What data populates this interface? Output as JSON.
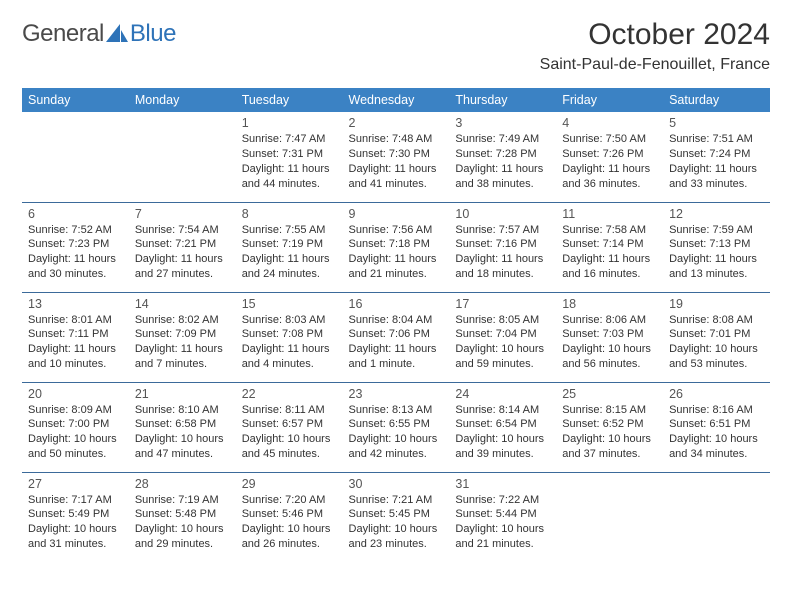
{
  "brand": {
    "left": "General",
    "right": "Blue"
  },
  "colors": {
    "header_bg": "#3b82c4",
    "header_text": "#ffffff",
    "row_border": "#3b6a9a",
    "logo_accent": "#2e73b8",
    "body_text": "#333333"
  },
  "title": "October 2024",
  "location": "Saint-Paul-de-Fenouillet, France",
  "weekdays": [
    "Sunday",
    "Monday",
    "Tuesday",
    "Wednesday",
    "Thursday",
    "Friday",
    "Saturday"
  ],
  "calendar": {
    "type": "table",
    "columns": 7,
    "rows": 5,
    "first_weekday_index": 2,
    "title_fontsize": 30,
    "location_fontsize": 16,
    "header_fontsize": 12.5,
    "daynum_fontsize": 12.5,
    "body_fontsize": 11
  },
  "days": [
    {
      "n": "1",
      "sunrise": "Sunrise: 7:47 AM",
      "sunset": "Sunset: 7:31 PM",
      "daylight": "Daylight: 11 hours and 44 minutes."
    },
    {
      "n": "2",
      "sunrise": "Sunrise: 7:48 AM",
      "sunset": "Sunset: 7:30 PM",
      "daylight": "Daylight: 11 hours and 41 minutes."
    },
    {
      "n": "3",
      "sunrise": "Sunrise: 7:49 AM",
      "sunset": "Sunset: 7:28 PM",
      "daylight": "Daylight: 11 hours and 38 minutes."
    },
    {
      "n": "4",
      "sunrise": "Sunrise: 7:50 AM",
      "sunset": "Sunset: 7:26 PM",
      "daylight": "Daylight: 11 hours and 36 minutes."
    },
    {
      "n": "5",
      "sunrise": "Sunrise: 7:51 AM",
      "sunset": "Sunset: 7:24 PM",
      "daylight": "Daylight: 11 hours and 33 minutes."
    },
    {
      "n": "6",
      "sunrise": "Sunrise: 7:52 AM",
      "sunset": "Sunset: 7:23 PM",
      "daylight": "Daylight: 11 hours and 30 minutes."
    },
    {
      "n": "7",
      "sunrise": "Sunrise: 7:54 AM",
      "sunset": "Sunset: 7:21 PM",
      "daylight": "Daylight: 11 hours and 27 minutes."
    },
    {
      "n": "8",
      "sunrise": "Sunrise: 7:55 AM",
      "sunset": "Sunset: 7:19 PM",
      "daylight": "Daylight: 11 hours and 24 minutes."
    },
    {
      "n": "9",
      "sunrise": "Sunrise: 7:56 AM",
      "sunset": "Sunset: 7:18 PM",
      "daylight": "Daylight: 11 hours and 21 minutes."
    },
    {
      "n": "10",
      "sunrise": "Sunrise: 7:57 AM",
      "sunset": "Sunset: 7:16 PM",
      "daylight": "Daylight: 11 hours and 18 minutes."
    },
    {
      "n": "11",
      "sunrise": "Sunrise: 7:58 AM",
      "sunset": "Sunset: 7:14 PM",
      "daylight": "Daylight: 11 hours and 16 minutes."
    },
    {
      "n": "12",
      "sunrise": "Sunrise: 7:59 AM",
      "sunset": "Sunset: 7:13 PM",
      "daylight": "Daylight: 11 hours and 13 minutes."
    },
    {
      "n": "13",
      "sunrise": "Sunrise: 8:01 AM",
      "sunset": "Sunset: 7:11 PM",
      "daylight": "Daylight: 11 hours and 10 minutes."
    },
    {
      "n": "14",
      "sunrise": "Sunrise: 8:02 AM",
      "sunset": "Sunset: 7:09 PM",
      "daylight": "Daylight: 11 hours and 7 minutes."
    },
    {
      "n": "15",
      "sunrise": "Sunrise: 8:03 AM",
      "sunset": "Sunset: 7:08 PM",
      "daylight": "Daylight: 11 hours and 4 minutes."
    },
    {
      "n": "16",
      "sunrise": "Sunrise: 8:04 AM",
      "sunset": "Sunset: 7:06 PM",
      "daylight": "Daylight: 11 hours and 1 minute."
    },
    {
      "n": "17",
      "sunrise": "Sunrise: 8:05 AM",
      "sunset": "Sunset: 7:04 PM",
      "daylight": "Daylight: 10 hours and 59 minutes."
    },
    {
      "n": "18",
      "sunrise": "Sunrise: 8:06 AM",
      "sunset": "Sunset: 7:03 PM",
      "daylight": "Daylight: 10 hours and 56 minutes."
    },
    {
      "n": "19",
      "sunrise": "Sunrise: 8:08 AM",
      "sunset": "Sunset: 7:01 PM",
      "daylight": "Daylight: 10 hours and 53 minutes."
    },
    {
      "n": "20",
      "sunrise": "Sunrise: 8:09 AM",
      "sunset": "Sunset: 7:00 PM",
      "daylight": "Daylight: 10 hours and 50 minutes."
    },
    {
      "n": "21",
      "sunrise": "Sunrise: 8:10 AM",
      "sunset": "Sunset: 6:58 PM",
      "daylight": "Daylight: 10 hours and 47 minutes."
    },
    {
      "n": "22",
      "sunrise": "Sunrise: 8:11 AM",
      "sunset": "Sunset: 6:57 PM",
      "daylight": "Daylight: 10 hours and 45 minutes."
    },
    {
      "n": "23",
      "sunrise": "Sunrise: 8:13 AM",
      "sunset": "Sunset: 6:55 PM",
      "daylight": "Daylight: 10 hours and 42 minutes."
    },
    {
      "n": "24",
      "sunrise": "Sunrise: 8:14 AM",
      "sunset": "Sunset: 6:54 PM",
      "daylight": "Daylight: 10 hours and 39 minutes."
    },
    {
      "n": "25",
      "sunrise": "Sunrise: 8:15 AM",
      "sunset": "Sunset: 6:52 PM",
      "daylight": "Daylight: 10 hours and 37 minutes."
    },
    {
      "n": "26",
      "sunrise": "Sunrise: 8:16 AM",
      "sunset": "Sunset: 6:51 PM",
      "daylight": "Daylight: 10 hours and 34 minutes."
    },
    {
      "n": "27",
      "sunrise": "Sunrise: 7:17 AM",
      "sunset": "Sunset: 5:49 PM",
      "daylight": "Daylight: 10 hours and 31 minutes."
    },
    {
      "n": "28",
      "sunrise": "Sunrise: 7:19 AM",
      "sunset": "Sunset: 5:48 PM",
      "daylight": "Daylight: 10 hours and 29 minutes."
    },
    {
      "n": "29",
      "sunrise": "Sunrise: 7:20 AM",
      "sunset": "Sunset: 5:46 PM",
      "daylight": "Daylight: 10 hours and 26 minutes."
    },
    {
      "n": "30",
      "sunrise": "Sunrise: 7:21 AM",
      "sunset": "Sunset: 5:45 PM",
      "daylight": "Daylight: 10 hours and 23 minutes."
    },
    {
      "n": "31",
      "sunrise": "Sunrise: 7:22 AM",
      "sunset": "Sunset: 5:44 PM",
      "daylight": "Daylight: 10 hours and 21 minutes."
    }
  ]
}
